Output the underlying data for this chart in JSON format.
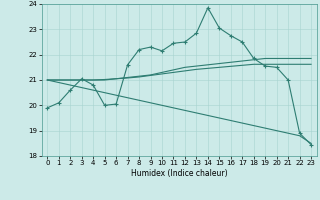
{
  "xlabel": "Humidex (Indice chaleur)",
  "background_color": "#cceae8",
  "line_color": "#2e7d72",
  "x": [
    0,
    1,
    2,
    3,
    4,
    5,
    6,
    7,
    8,
    9,
    10,
    11,
    12,
    13,
    14,
    15,
    16,
    17,
    18,
    19,
    20,
    21,
    22,
    23
  ],
  "y_main": [
    19.9,
    20.1,
    20.6,
    21.05,
    20.8,
    20.0,
    20.05,
    21.6,
    22.2,
    22.3,
    22.15,
    22.45,
    22.5,
    22.85,
    23.85,
    23.05,
    22.75,
    22.5,
    21.85,
    21.55,
    21.5,
    21.0,
    18.9,
    18.45
  ],
  "y_line1": [
    21.0,
    21.0,
    21.0,
    21.0,
    21.0,
    21.0,
    21.05,
    21.1,
    21.15,
    21.2,
    21.3,
    21.4,
    21.5,
    21.55,
    21.6,
    21.65,
    21.7,
    21.75,
    21.8,
    21.85,
    21.85,
    21.85,
    21.85,
    21.85
  ],
  "y_line2": [
    21.0,
    21.0,
    21.0,
    21.0,
    21.0,
    21.02,
    21.05,
    21.08,
    21.12,
    21.18,
    21.24,
    21.3,
    21.36,
    21.42,
    21.46,
    21.5,
    21.54,
    21.58,
    21.62,
    21.62,
    21.62,
    21.62,
    21.62,
    21.62
  ],
  "y_line3": [
    21.0,
    20.9,
    20.8,
    20.7,
    20.6,
    20.5,
    20.4,
    20.3,
    20.2,
    20.1,
    20.0,
    19.9,
    19.8,
    19.7,
    19.6,
    19.5,
    19.4,
    19.3,
    19.2,
    19.1,
    19.0,
    18.9,
    18.8,
    18.5
  ],
  "ylim": [
    18,
    24
  ],
  "xlim": [
    -0.5,
    23.5
  ],
  "yticks": [
    18,
    19,
    20,
    21,
    22,
    23,
    24
  ],
  "xticks": [
    0,
    1,
    2,
    3,
    4,
    5,
    6,
    7,
    8,
    9,
    10,
    11,
    12,
    13,
    14,
    15,
    16,
    17,
    18,
    19,
    20,
    21,
    22,
    23
  ]
}
